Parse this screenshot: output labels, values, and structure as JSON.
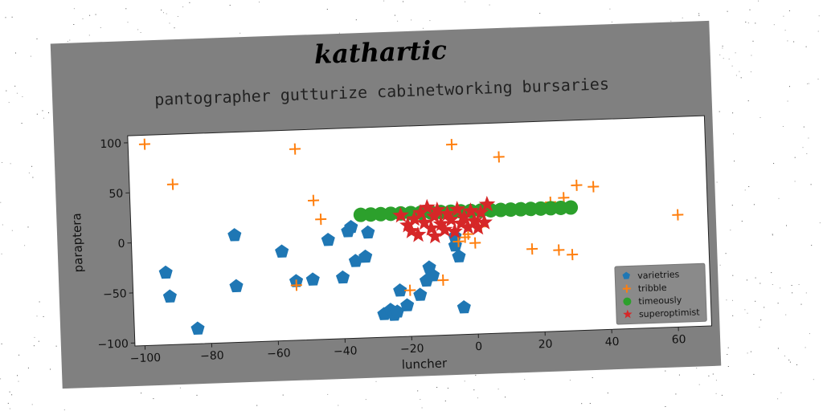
{
  "figure": {
    "suptitle": "kathartic",
    "title": "pantographer gutturize cabinetworking bursaries"
  },
  "chart_data": {
    "type": "scatter",
    "title": "pantographer gutturize cabinetworking bursaries",
    "xlabel": "luncher",
    "ylabel": "paraptera",
    "xlim": [
      -103,
      70
    ],
    "ylim": [
      -103,
      107
    ],
    "xticks": [
      -100,
      -80,
      -60,
      -40,
      -20,
      0,
      20,
      40,
      60
    ],
    "yticks": [
      -100,
      -50,
      0,
      50,
      100
    ],
    "legend_position": "lower right",
    "series": [
      {
        "name": "varietries",
        "marker": "pentagon",
        "color": "#1f77b4",
        "points": [
          [
            -93,
            -31
          ],
          [
            -92,
            -55
          ],
          [
            -84,
            -88
          ],
          [
            -72,
            4
          ],
          [
            -72,
            -47
          ],
          [
            -58,
            -14
          ],
          [
            -54,
            -44
          ],
          [
            -49,
            -43
          ],
          [
            -44,
            -4
          ],
          [
            -40,
            -42
          ],
          [
            -38,
            4
          ],
          [
            -37,
            8
          ],
          [
            -36,
            -26
          ],
          [
            -33,
            -22
          ],
          [
            -32,
            2
          ],
          [
            -28,
            -80
          ],
          [
            -26,
            -76
          ],
          [
            -25,
            -81
          ],
          [
            -24,
            -78
          ],
          [
            -23,
            -57
          ],
          [
            -21,
            -72
          ],
          [
            -17,
            -62
          ],
          [
            -15,
            -48
          ],
          [
            -14,
            -35
          ],
          [
            -13,
            -43
          ],
          [
            -6,
            -5
          ],
          [
            -6,
            -14
          ],
          [
            -5,
            -25
          ],
          [
            -4,
            -76
          ]
        ]
      },
      {
        "name": "tribble",
        "marker": "plus",
        "color": "#ff7f0e",
        "points": [
          [
            -98,
            98
          ],
          [
            -90,
            57
          ],
          [
            -53,
            88
          ],
          [
            -54,
            -48
          ],
          [
            -48,
            36
          ],
          [
            -46,
            17
          ],
          [
            -20,
            -57
          ],
          [
            -10,
            -48
          ],
          [
            -6,
            87
          ],
          [
            -5,
            -10
          ],
          [
            -3,
            -6
          ],
          [
            -2,
            -3
          ],
          [
            0,
            -12
          ],
          [
            2,
            4
          ],
          [
            8,
            73
          ],
          [
            13,
            20
          ],
          [
            17,
            -20
          ],
          [
            23,
            26
          ],
          [
            25,
            -22
          ],
          [
            27,
            30
          ],
          [
            29,
            -27
          ],
          [
            31,
            42
          ],
          [
            36,
            40
          ],
          [
            61,
            9
          ]
        ]
      },
      {
        "name": "timeously",
        "marker": "circle",
        "color": "#2ca02c",
        "points": [
          [
            -34,
            20
          ],
          [
            -31,
            20
          ],
          [
            -28,
            20
          ],
          [
            -25,
            20
          ],
          [
            -22,
            20
          ],
          [
            -19,
            20
          ],
          [
            -16,
            20
          ],
          [
            -13,
            20
          ],
          [
            -10,
            20
          ],
          [
            -7,
            20
          ],
          [
            -4,
            20
          ],
          [
            -1,
            20
          ],
          [
            2,
            20
          ],
          [
            5,
            20
          ],
          [
            8,
            20
          ],
          [
            11,
            20
          ],
          [
            14,
            20
          ],
          [
            17,
            20
          ],
          [
            20,
            20
          ],
          [
            23,
            20
          ],
          [
            26,
            20
          ],
          [
            29,
            20
          ]
        ]
      },
      {
        "name": "superoptimist",
        "marker": "star",
        "color": "#d62728",
        "points": [
          [
            -22,
            18
          ],
          [
            -20,
            8
          ],
          [
            -19,
            2
          ],
          [
            -18,
            14
          ],
          [
            -17,
            -2
          ],
          [
            -16,
            20
          ],
          [
            -15,
            10
          ],
          [
            -14,
            25
          ],
          [
            -13,
            4
          ],
          [
            -12,
            16
          ],
          [
            -12,
            -4
          ],
          [
            -11,
            22
          ],
          [
            -10,
            8
          ],
          [
            -9,
            2
          ],
          [
            -8,
            18
          ],
          [
            -7,
            12
          ],
          [
            -6,
            0
          ],
          [
            -5,
            22
          ],
          [
            -4,
            8
          ],
          [
            -3,
            14
          ],
          [
            -2,
            4
          ],
          [
            -1,
            20
          ],
          [
            0,
            10
          ],
          [
            1,
            3
          ],
          [
            2,
            18
          ],
          [
            3,
            8
          ],
          [
            4,
            26
          ]
        ]
      }
    ]
  }
}
